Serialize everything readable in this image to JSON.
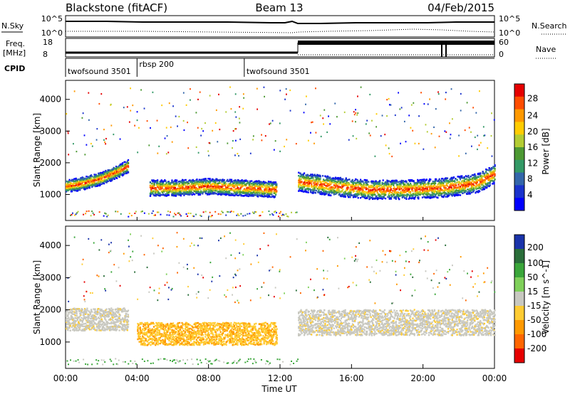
{
  "header": {
    "title_left": "Blackstone (fitACF)",
    "title_center": "Beam 13",
    "title_right": "04/Feb/2015"
  },
  "panels": {
    "nsky": {
      "label": "N.Sky",
      "ticks": [
        "10^5",
        "10^0"
      ],
      "right_label": "N.Search",
      "right_ticks": [
        "10^5",
        "10^0"
      ]
    },
    "freq": {
      "label_line1": "Freq.",
      "label_line2": "[MHz]",
      "ticks": [
        "18",
        "8"
      ],
      "right_label": "Nave",
      "right_ticks": [
        "60",
        "0"
      ]
    },
    "cpid": {
      "label": "CPID",
      "segments": [
        {
          "name": "twofsound 3501",
          "start_hour": 0,
          "end_hour": 4
        },
        {
          "name": "rbsp 200",
          "start_hour": 4,
          "end_hour": 10
        },
        {
          "name": "twofsound 3501",
          "start_hour": 10,
          "end_hour": 24
        }
      ]
    }
  },
  "chart_data": [
    {
      "type": "heatmap",
      "name": "Power",
      "ylabel": "Slant Range [km]",
      "xlabel": "Time UT",
      "xticks": [
        "00:00",
        "04:00",
        "08:00",
        "12:00",
        "16:00",
        "20:00",
        "00:00"
      ],
      "xlim_hours": [
        0,
        24
      ],
      "ylim": [
        180,
        4600
      ],
      "yticks": [
        1000,
        2000,
        3000,
        4000
      ],
      "colorbar": {
        "label": "Power [dB]",
        "ticks": [
          "28",
          "24",
          "20",
          "16",
          "12",
          "8",
          "4"
        ],
        "colors": [
          "#e60000",
          "#ff4d00",
          "#ff9900",
          "#ffcc00",
          "#b3cc33",
          "#4d9933",
          "#339966",
          "#3366aa",
          "#1a33cc",
          "#0000ff"
        ]
      },
      "features": [
        {
          "desc": "band",
          "t": [
            0.0,
            1.0,
            2.0,
            3.0,
            3.5
          ],
          "range": [
            1250,
            1350,
            1500,
            1750,
            1900
          ],
          "halfwidth": 200
        },
        {
          "desc": "band",
          "t": [
            4.7,
            6.0,
            8.0,
            10.0,
            11.8
          ],
          "range": [
            1200,
            1200,
            1250,
            1200,
            1150
          ],
          "halfwidth": 250
        },
        {
          "desc": "band",
          "t": [
            13.0,
            15.0,
            17.0,
            19.0,
            21.0,
            23.0,
            24.0
          ],
          "range": [
            1400,
            1250,
            1150,
            1150,
            1200,
            1350,
            1650
          ],
          "halfwidth": 300
        }
      ]
    },
    {
      "type": "heatmap",
      "name": "Velocity",
      "ylabel": "Slant Range [km]",
      "xlabel": "Time UT",
      "xticks": [
        "00:00",
        "04:00",
        "08:00",
        "12:00",
        "16:00",
        "20:00",
        "00:00"
      ],
      "xlim_hours": [
        0,
        24
      ],
      "ylim": [
        180,
        4600
      ],
      "yticks": [
        1000,
        2000,
        3000,
        4000
      ],
      "colorbar": {
        "label": "Velocity [m s^-1]",
        "ticks": [
          "200",
          "100",
          "50",
          "15",
          "-15",
          "-50",
          "-100",
          "-200"
        ],
        "colors": [
          "#1a33aa",
          "#2a6e3a",
          "#3aa63a",
          "#7fd05a",
          "#c8c8c0",
          "#ffcc33",
          "#ff9900",
          "#ff6600",
          "#e60000"
        ]
      },
      "features": [
        {
          "desc": "ground scatter (gray)",
          "t": [
            0.0,
            3.5
          ],
          "range": [
            1700,
            1700
          ],
          "halfwidth": 350
        },
        {
          "desc": "negative velocity (orange)",
          "t": [
            4.0,
            11.8
          ],
          "range": [
            1250,
            1250
          ],
          "halfwidth": 350
        },
        {
          "desc": "ground scatter (gray)",
          "t": [
            13.0,
            24.0
          ],
          "range": [
            1600,
            1600
          ],
          "halfwidth": 400
        }
      ]
    }
  ]
}
